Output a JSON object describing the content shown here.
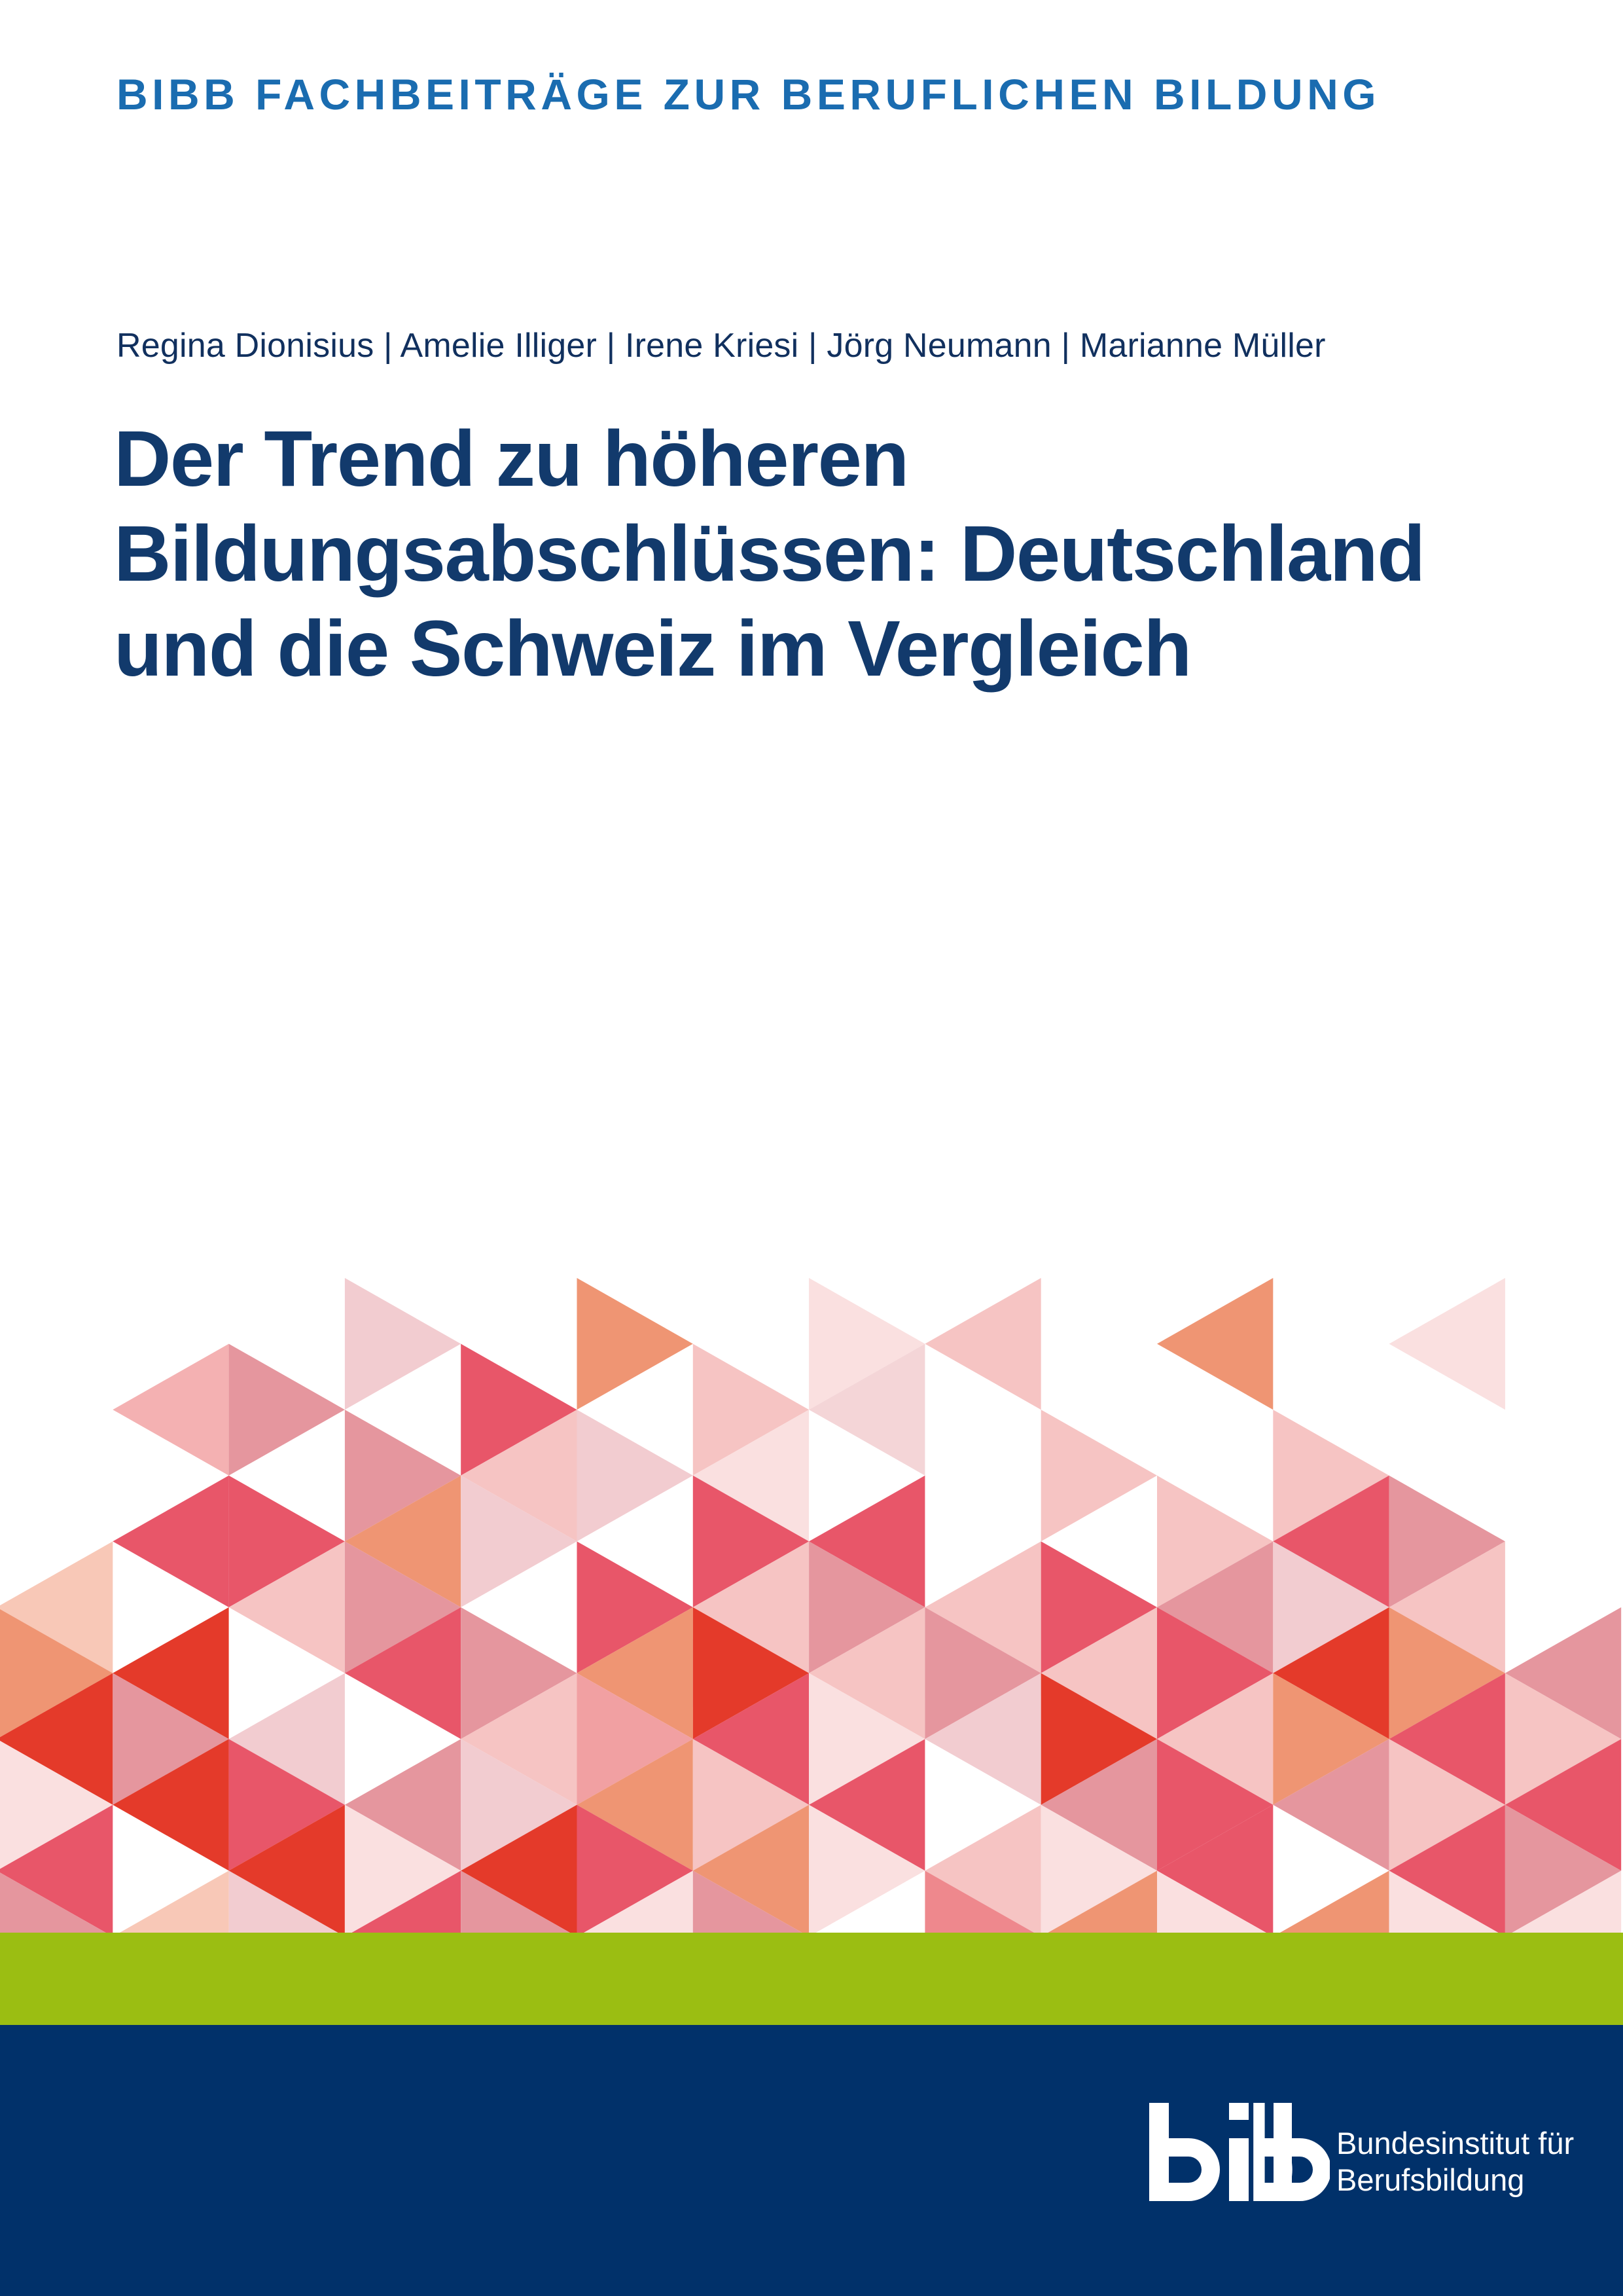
{
  "series_title": "BIBB FACHBEITRÄGE ZUR BERUFLICHEN BILDUNG",
  "authors": "Regina Dionisius | Amelie Illiger | Irene Kriesi | Jörg Neumann | Marianne Müller",
  "title_lines": [
    "Der Trend zu höheren",
    "Bildungsabschlüssen: Deutschland",
    "und die Schweiz im Vergleich"
  ],
  "publisher": {
    "logo_text": "bibb",
    "name_line1": "Bundesinstitut für",
    "name_line2": "Berufsbildung"
  },
  "colors": {
    "series_blue": "#1a6cb0",
    "title_navy": "#123a6c",
    "green_band": "#9bbe12",
    "navy_band": "#01316a"
  },
  "triangle_palette": {
    "W": "#ffffff",
    "R": "#e43a2a",
    "C": "#e85669",
    "S": "#e5969e",
    "L": "#f6c4c3",
    "P": "#f2ccd0",
    "V": "#fae0e0",
    "O": "#ef9573",
    "E": "#f8c8b7",
    "M": "#f1a0a2",
    "B": "#f4b1b2",
    "K": "#ee888d",
    "Q": "#f4d5d7"
  },
  "triangle_columns": [
    "WWWWWEORVCS",
    "WWBWCWRSRWE",
    "WWSWCLWPCRP",
    "WPWSOSCWSVC",
    "WWCLPWSLPRS",
    "WOWPWCOMOCV",
    "WWLVCLRCLOS",
    "WVQWCSLVCVW",
    "WLWWWLSPWLK",
    "WWWLWCLRSVO",
    "WOWWLSCLCCV",
    "WWWLCPROSWO",
    "WVWWSLOCLCV",
    "WWWWWWSLCSV"
  ]
}
